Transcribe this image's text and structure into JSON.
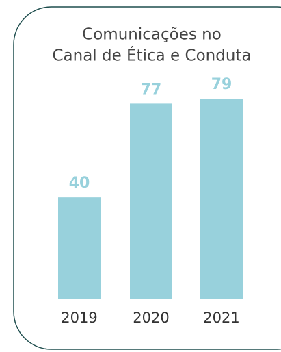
{
  "chart_data": {
    "type": "bar",
    "title": [
      "Comunicações no",
      "Canal de Ética e Conduta"
    ],
    "categories": [
      "2019",
      "2020",
      "2021"
    ],
    "values": [
      40,
      77,
      79
    ],
    "color": "#98d1dc"
  }
}
